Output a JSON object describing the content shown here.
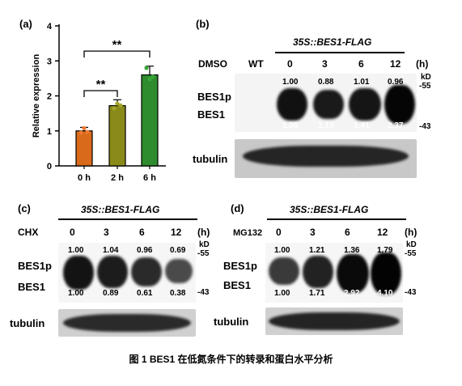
{
  "caption": "图 1 BES1 在低氮条件下的转录和蛋白水平分析",
  "panel_a": {
    "letter": "(a)",
    "chart_data": {
      "type": "bar",
      "categories": [
        "0 h",
        "2 h",
        "6 h"
      ],
      "values": [
        1.0,
        1.72,
        2.6
      ],
      "errors": [
        0.1,
        0.17,
        0.25
      ],
      "points": [
        [
          0.95,
          1.08,
          0.97
        ],
        [
          1.65,
          1.78,
          1.73
        ],
        [
          2.8,
          2.48,
          2.55
        ]
      ],
      "colors": [
        "#d96a1a",
        "#8a8a1a",
        "#2e8b2e"
      ],
      "point_colors": [
        "#f07a30",
        "#a5a52a",
        "#38a838"
      ],
      "ylabel": "Relative expression",
      "ylim": [
        0,
        4
      ],
      "yticks": [
        0,
        1,
        2,
        3,
        4
      ],
      "significance": [
        {
          "from": 0,
          "to": 1,
          "label": "**"
        },
        {
          "from": 0,
          "to": 2,
          "label": "**"
        }
      ]
    }
  },
  "panel_b": {
    "letter": "(b)",
    "construct": "35S::BES1-FLAG",
    "treatment": "DMSO",
    "lanes": [
      "WT",
      "0",
      "3",
      "6",
      "12"
    ],
    "unit": "(h)",
    "bes1p_values": [
      "1.00",
      "0.88",
      "1.01",
      "0.96"
    ],
    "bes1_values": [
      "1.00",
      "1.13",
      "1.41",
      "2.37"
    ],
    "kd": "kD",
    "marker_high": "-55",
    "marker_low": "-43",
    "label_bes1p": "BES1p",
    "label_bes1": "BES1",
    "label_tubulin": "tubulin"
  },
  "panel_c": {
    "letter": "(c)",
    "construct": "35S::BES1-FLAG",
    "treatment": "CHX",
    "lanes": [
      "0",
      "3",
      "6",
      "12"
    ],
    "unit": "(h)",
    "bes1p_values": [
      "1.00",
      "1.04",
      "0.96",
      "0.69"
    ],
    "bes1_values": [
      "1.00",
      "0.89",
      "0.61",
      "0.38"
    ],
    "kd": "kD",
    "marker_high": "-55",
    "marker_low": "-43",
    "label_bes1p": "BES1p",
    "label_bes1": "BES1",
    "label_tubulin": "tubulin"
  },
  "panel_d": {
    "letter": "(d)",
    "construct": "35S::BES1-FLAG",
    "treatment": "MG132",
    "lanes": [
      "0",
      "3",
      "6",
      "12"
    ],
    "unit": "(h)",
    "bes1p_values": [
      "1.00",
      "1.21",
      "1.36",
      "1.79"
    ],
    "bes1_values": [
      "1.00",
      "1.71",
      "2.92",
      "4.10"
    ],
    "kd": "kD",
    "marker_high": "-55",
    "marker_low": "-43",
    "label_bes1p": "BES1p",
    "label_bes1": "BES1",
    "label_tubulin": "tubulin"
  }
}
